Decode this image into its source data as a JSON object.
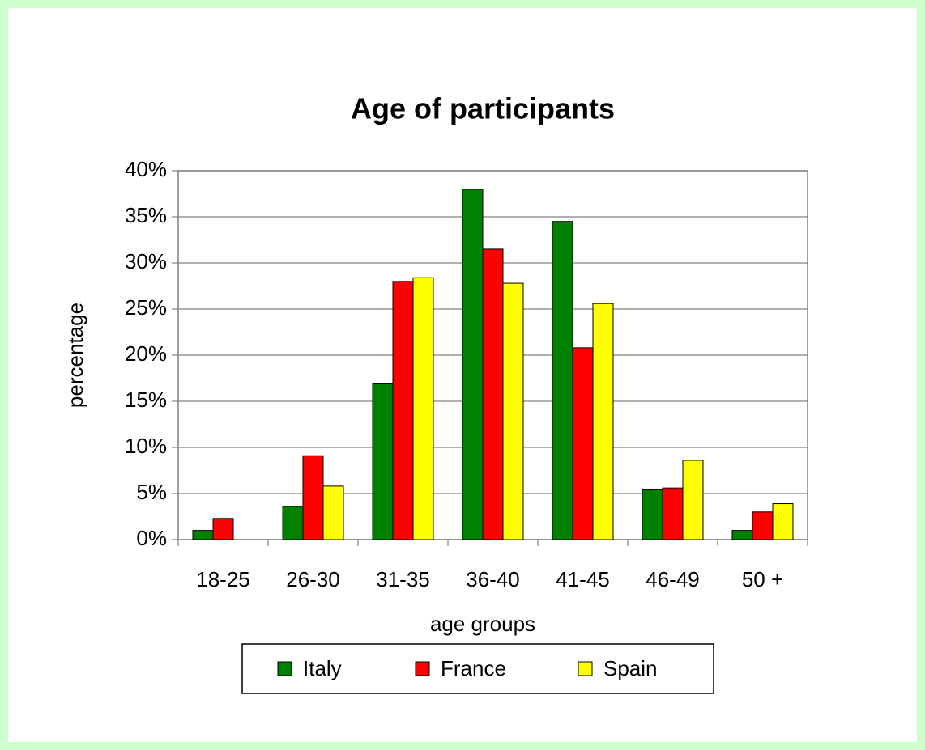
{
  "chart_data": {
    "type": "bar",
    "title": "Age of participants",
    "x_label": "age groups",
    "y_label": "percentage",
    "categories": [
      "18-25",
      "26-30",
      "31-35",
      "36-40",
      "41-45",
      "46-49",
      "50 +"
    ],
    "series": [
      {
        "name": "Italy",
        "color": "#008000",
        "values": [
          1,
          3.6,
          16.9,
          38,
          34.5,
          5.4,
          1
        ]
      },
      {
        "name": "France",
        "color": "#ff0000",
        "values": [
          2.3,
          9.1,
          28,
          31.5,
          20.8,
          5.6,
          3
        ]
      },
      {
        "name": "Spain",
        "color": "#ffff00",
        "values": [
          0,
          5.8,
          28.4,
          27.8,
          25.6,
          8.6,
          3.9
        ]
      }
    ],
    "ylim": [
      0,
      40
    ],
    "yticks": [
      {
        "value": 0,
        "label": "0%"
      },
      {
        "value": 5,
        "label": "5%"
      },
      {
        "value": 10,
        "label": "10%"
      },
      {
        "value": 15,
        "label": "15%"
      },
      {
        "value": 20,
        "label": "20%"
      },
      {
        "value": 25,
        "label": "25%"
      },
      {
        "value": 30,
        "label": "30%"
      },
      {
        "value": 35,
        "label": "35%"
      },
      {
        "value": 40,
        "label": "40%"
      }
    ],
    "grid": true,
    "legend": "bottom"
  }
}
